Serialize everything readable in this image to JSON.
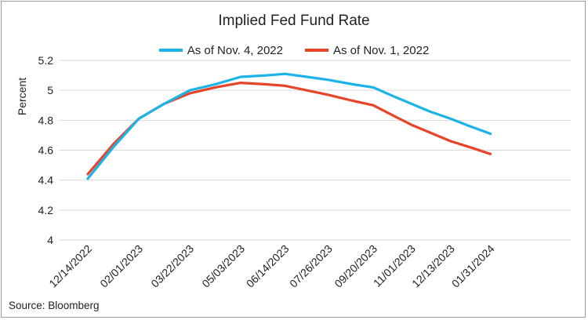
{
  "chart_data": {
    "type": "line",
    "title": "Implied Fed Fund Rate",
    "ylabel": "Percent",
    "xlabel": "",
    "ylim": [
      4,
      5.2
    ],
    "yticks": [
      4,
      4.2,
      4.4,
      4.6,
      4.8,
      5,
      5.2
    ],
    "grid": true,
    "legend_position": "top",
    "categories": [
      "12/14/2022",
      "02/01/2023",
      "03/22/2023",
      "05/03/2023",
      "06/14/2023",
      "07/26/2023",
      "09/20/2023",
      "11/01/2023",
      "12/13/2023",
      "01/31/2024"
    ],
    "x_positions": [
      0,
      1,
      2,
      3,
      3.87,
      4.72,
      5.6,
      6.35,
      7.12,
      7.9
    ],
    "series": [
      {
        "name": "As of Nov. 4, 2022",
        "color": "#1cb4e8",
        "x": [
          0,
          0.5,
          1,
          1.5,
          2,
          2.5,
          3,
          3.5,
          3.87,
          4.3,
          4.72,
          5.2,
          5.6,
          6.0,
          6.35,
          6.7,
          7.12,
          7.5,
          7.9
        ],
        "values": [
          4.41,
          4.62,
          4.81,
          4.91,
          5.0,
          5.04,
          5.09,
          5.1,
          5.11,
          5.09,
          5.07,
          5.04,
          5.02,
          4.96,
          4.91,
          4.86,
          4.81,
          4.76,
          4.71
        ]
      },
      {
        "name": "As of Nov. 1, 2022",
        "color": "#e8442a",
        "x": [
          0,
          0.5,
          1,
          1.5,
          2,
          2.5,
          3,
          3.5,
          3.87,
          4.3,
          4.72,
          5.2,
          5.6,
          6.0,
          6.35,
          6.7,
          7.12,
          7.5,
          7.9
        ],
        "values": [
          4.44,
          4.64,
          4.81,
          4.91,
          4.98,
          5.02,
          5.05,
          5.04,
          5.03,
          5.0,
          4.97,
          4.93,
          4.9,
          4.83,
          4.77,
          4.72,
          4.66,
          4.62,
          4.575
        ]
      }
    ]
  },
  "footer": {
    "source": "Source: Bloomberg"
  }
}
